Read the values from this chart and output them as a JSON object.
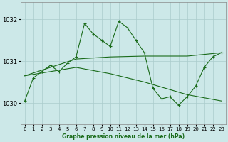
{
  "title": "Graphe pression niveau de la mer (hPa)",
  "bg_color": "#cce8e8",
  "grid_color": "#aacccc",
  "line_color": "#1a6b1a",
  "xlim": [
    -0.5,
    23.5
  ],
  "ylim": [
    1029.5,
    1032.4
  ],
  "yticks": [
    1030,
    1031,
    1032
  ],
  "xticks": [
    0,
    1,
    2,
    3,
    4,
    5,
    6,
    7,
    8,
    9,
    10,
    11,
    12,
    13,
    14,
    15,
    16,
    17,
    18,
    19,
    20,
    21,
    22,
    23
  ],
  "jagged_x": [
    0,
    1,
    2,
    3,
    4,
    5,
    6,
    7,
    8,
    9,
    10,
    11,
    12,
    13,
    14,
    15,
    16,
    17,
    18,
    19,
    20,
    21,
    22,
    23
  ],
  "jagged_y": [
    1030.05,
    1030.6,
    1030.75,
    1030.9,
    1030.75,
    1030.95,
    1031.1,
    1031.9,
    1031.65,
    1031.5,
    1031.35,
    1031.95,
    1031.8,
    1031.5,
    1031.2,
    1030.35,
    1030.1,
    1030.15,
    1029.95,
    1030.15,
    1030.4,
    1030.85,
    1031.1,
    1031.2
  ],
  "trend1_x": [
    0,
    6,
    10,
    14,
    19,
    23
  ],
  "trend1_y": [
    1030.65,
    1031.05,
    1031.1,
    1031.12,
    1031.12,
    1031.2
  ],
  "trend2_x": [
    0,
    6,
    10,
    14,
    19,
    23
  ],
  "trend2_y": [
    1030.65,
    1030.85,
    1030.7,
    1030.5,
    1030.2,
    1030.05
  ]
}
